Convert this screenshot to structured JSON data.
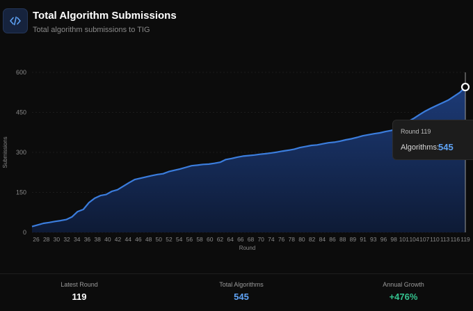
{
  "header": {
    "icon": "code-icon",
    "title": "Total Algorithm Submissions",
    "subtitle": "Total algorithm submissions to TIG"
  },
  "tooltip": {
    "round_label": "Round 119",
    "metric_label": "Algorithms:",
    "metric_value": "545"
  },
  "stats": {
    "latest_round": {
      "label": "Latest Round",
      "value": "119",
      "color": "#ffffff"
    },
    "total_algorithms": {
      "label": "Total Algorithms",
      "value": "545",
      "color": "#5fa3f5"
    },
    "annual_growth": {
      "label": "Annual Growth",
      "value": "+476%",
      "color": "#34c38f"
    }
  },
  "colors": {
    "line": "#3b7ddd",
    "area_top": "#1f4288",
    "area_bottom": "#0e1c3a",
    "grid": "#1c1c1c",
    "axis_text": "#8a8a8a",
    "tooltip_value": "#5fa3f5"
  },
  "chart_data": {
    "type": "area",
    "xlabel": "Round",
    "ylabel": "Submissions",
    "ylim": [
      0,
      600
    ],
    "yticks": [
      0,
      150,
      300,
      450,
      600
    ],
    "xticks": [
      26,
      28,
      30,
      32,
      34,
      36,
      38,
      40,
      42,
      44,
      46,
      48,
      50,
      52,
      54,
      56,
      58,
      60,
      62,
      64,
      66,
      68,
      70,
      74,
      76,
      78,
      80,
      82,
      84,
      86,
      88,
      89,
      91,
      93,
      96,
      98,
      101,
      104,
      107,
      110,
      113,
      116,
      119
    ],
    "grid": true,
    "series": [
      {
        "values": [
          22,
          28,
          34,
          37,
          41,
          44,
          48,
          58,
          78,
          86,
          112,
          128,
          138,
          142,
          154,
          160,
          173,
          186,
          198,
          203,
          208,
          213,
          217,
          220,
          228,
          233,
          238,
          244,
          250,
          252,
          255,
          256,
          259,
          263,
          273,
          277,
          282,
          286,
          288,
          290,
          293,
          295,
          298,
          301,
          305,
          308,
          312,
          318,
          322,
          326,
          328,
          332,
          336,
          338,
          342,
          347,
          351,
          356,
          362,
          366,
          370,
          373,
          378,
          382,
          390,
          402,
          416,
          428,
          442,
          455,
          466,
          476,
          486,
          496,
          510,
          524,
          545
        ]
      }
    ],
    "highlight": {
      "x": "119",
      "y": 545
    }
  }
}
